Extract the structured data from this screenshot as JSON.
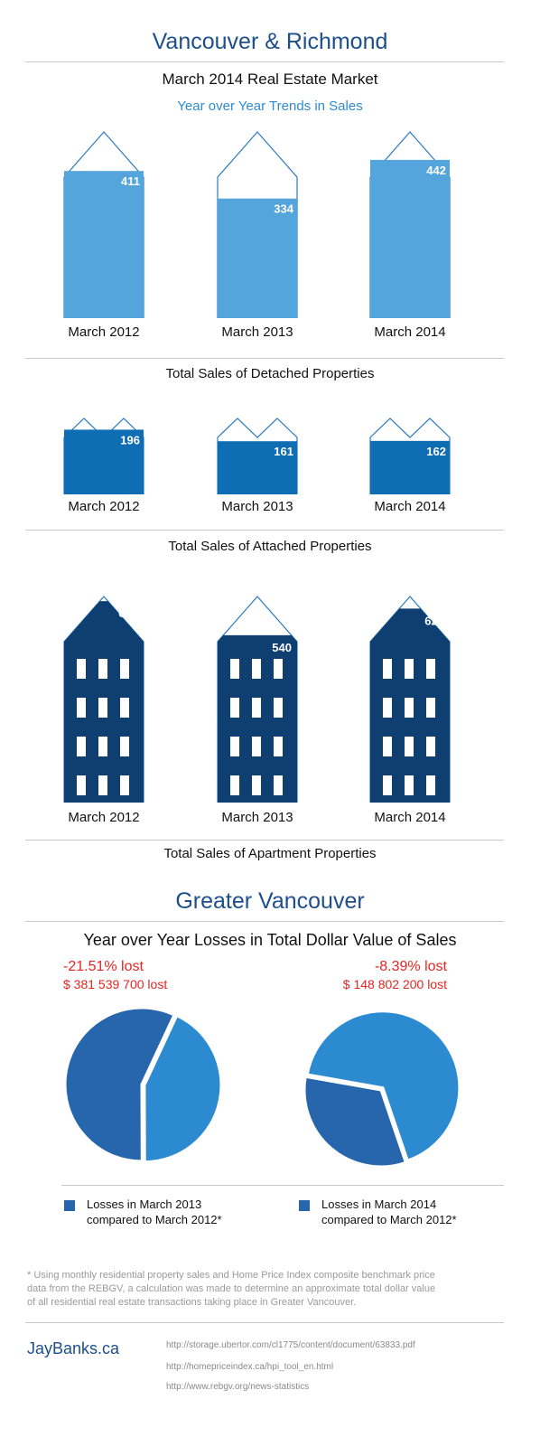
{
  "header": {
    "title": "Vancouver & Richmond",
    "subtitle": "March 2014 Real Estate Market",
    "tagline": "Year over Year Trends in Sales"
  },
  "colors": {
    "detached_fill": "#55a5dd",
    "attached_fill": "#0f6db4",
    "apartment_fill": "#0f3f70",
    "outline": "#2878c0",
    "title_blue": "#1d4f8c",
    "accent_red": "#e52521",
    "pie_light": "#2b8ad0",
    "pie_dark": "#2765ad"
  },
  "chart_data": [
    {
      "type": "bar",
      "title": "Total Sales of Detached Properties",
      "categories": [
        "March 2012",
        "March 2013",
        "March 2014"
      ],
      "values": [
        411,
        334,
        442
      ]
    },
    {
      "type": "bar",
      "title": "Total Sales of Attached Properties",
      "categories": [
        "March 2012",
        "March 2013",
        "March 2014"
      ],
      "values": [
        196,
        161,
        162
      ]
    },
    {
      "type": "bar",
      "title": "Total Sales of Apartment Properties",
      "categories": [
        "March 2012",
        "March 2013",
        "March 2014"
      ],
      "values": [
        650,
        540,
        626
      ]
    },
    {
      "type": "pie",
      "title": "Year over Year Losses in Total Dollar Value of Sales",
      "pies": [
        {
          "percent_label": "-21.51% lost",
          "amount_label": "$ 381 539 700 lost",
          "slices": [
            {
              "name": "Losses in March 2013 compared to March 2012*",
              "value": 57
            },
            {
              "name": "",
              "value": 43
            }
          ]
        },
        {
          "percent_label": "-8.39% lost",
          "amount_label": "$ 148 802 200 lost",
          "slices": [
            {
              "name": "Losses in March 2014 compared to March 2012*",
              "value": 33
            },
            {
              "name": "",
              "value": 67
            }
          ]
        }
      ]
    }
  ],
  "greater": {
    "title": "Greater Vancouver",
    "loss_title": "Year over Year Losses in Total Dollar Value of Sales",
    "left_pct": "-21.51% lost",
    "left_amt": "$ 381 539 700 lost",
    "right_pct": "-8.39% lost",
    "right_amt": "$ 148 802 200 lost",
    "legend_left_1": "Losses in March 2013",
    "legend_left_2": "compared to March 2012*",
    "legend_right_1": "Losses in March 2014",
    "legend_right_2": "compared to March 2012*"
  },
  "footer": {
    "note": "* Using monthly residential property sales and Home Price Index composite benchmark price data from the REBGV, a calculation was made to determine an approximate total dollar value of all residential real estate transactions taking place in Greater Vancouver.",
    "brand": "JayBanks.ca",
    "link1": "http://storage.ubertor.com/cl1775/content/document/63833.pdf",
    "link2": "http://homepriceindex.ca/hpi_tool_en.html",
    "link3": "http://www.rebgv.org/news-statistics"
  }
}
